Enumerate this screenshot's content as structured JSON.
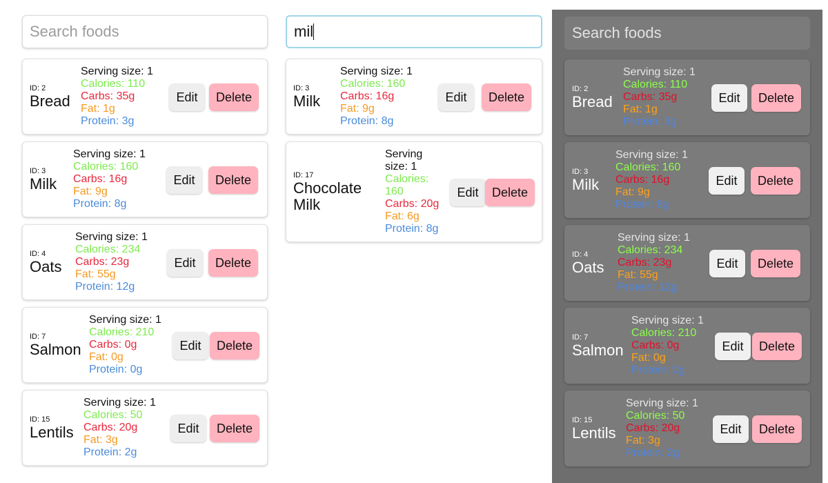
{
  "search": {
    "placeholder": "Search foods",
    "query": "mil"
  },
  "buttons": {
    "edit": "Edit",
    "delete": "Delete"
  },
  "serving_label": "Serving size: 1",
  "colors": {
    "calories": "#7dea4d",
    "carbs": "#e8283c",
    "fat": "#f59a23",
    "protein": "#4a8bdb",
    "delete_button": "#ffb3bf",
    "search_focus": "#9fd6e6",
    "dark_panel": "#6e6e6e"
  },
  "foods": [
    {
      "id": "ID: 2",
      "name": "Bread",
      "serving": "Serving size: 1",
      "calories": "Calories: 110",
      "carbs": "Carbs: 35g",
      "fat": "Fat: 1g",
      "protein": "Protein: 3g"
    },
    {
      "id": "ID: 3",
      "name": "Milk",
      "serving": "Serving size: 1",
      "calories": "Calories: 160",
      "carbs": "Carbs: 16g",
      "fat": "Fat: 9g",
      "protein": "Protein: 8g"
    },
    {
      "id": "ID: 4",
      "name": "Oats",
      "serving": "Serving size: 1",
      "calories": "Calories: 234",
      "carbs": "Carbs: 23g",
      "fat": "Fat: 55g",
      "protein": "Protein: 12g"
    },
    {
      "id": "ID: 7",
      "name": "Salmon",
      "serving": "Serving size: 1",
      "calories": "Calories: 210",
      "carbs": "Carbs: 0g",
      "fat": "Fat: 0g",
      "protein": "Protein: 0g"
    },
    {
      "id": "ID: 15",
      "name": "Lentils",
      "serving": "Serving size: 1",
      "calories": "Calories: 50",
      "carbs": "Carbs: 20g",
      "fat": "Fat: 3g",
      "protein": "Protein: 2g"
    }
  ],
  "filtered": [
    {
      "id": "ID: 3",
      "name": "Milk",
      "serving": "Serving size: 1",
      "calories": "Calories: 160",
      "carbs": "Carbs: 16g",
      "fat": "Fat: 9g",
      "protein": "Protein: 8g"
    },
    {
      "id": "ID: 17",
      "name_lines": [
        "Chocolate",
        "Milk"
      ],
      "serving_lines": [
        "Serving",
        "size: 1"
      ],
      "calories_lines": [
        "Calories:",
        "160"
      ],
      "carbs": "Carbs: 20g",
      "fat": "Fat: 6g",
      "protein": "Protein: 8g"
    }
  ]
}
